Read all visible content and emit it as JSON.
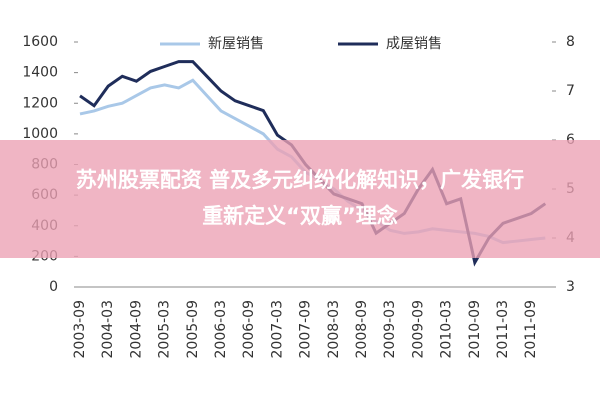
{
  "chart_data": {
    "type": "line",
    "title_lines": [
      "苏州股票配资 普及多元纠纷化解知识，广发银行",
      "重新定义“双赢”理念"
    ],
    "categories": [
      "2003-09",
      null,
      "2004-03",
      null,
      "2004-09",
      null,
      "2005-03",
      null,
      "2005-09",
      null,
      "2006-03",
      null,
      "2006-09",
      null,
      "2007-03",
      null,
      "2007-09",
      null,
      "2008-03",
      null,
      "2008-09",
      null,
      "2009-03",
      null,
      "2009-09",
      null,
      "2010-03",
      null,
      "2010-09",
      null,
      "2011-03",
      null,
      "2011-09",
      null
    ],
    "series": [
      {
        "name": "新屋销售",
        "color": "#a9c8e8",
        "values": [
          1130,
          1150,
          1180,
          1200,
          1250,
          1300,
          1320,
          1300,
          1350,
          1250,
          1150,
          1100,
          1050,
          1000,
          900,
          850,
          750,
          700,
          640,
          560,
          500,
          430,
          370,
          350,
          360,
          380,
          370,
          360,
          350,
          330,
          290,
          300,
          310,
          320
        ]
      },
      {
        "name": "成屋销售",
        "color": "#1f2d5a",
        "axis": "y2",
        "values": [
          6.9,
          6.7,
          7.1,
          7.3,
          7.2,
          7.4,
          7.5,
          7.6,
          7.6,
          7.3,
          7.0,
          6.8,
          6.7,
          6.6,
          6.1,
          5.9,
          5.5,
          5.2,
          4.9,
          4.8,
          4.7,
          4.1,
          4.3,
          4.5,
          5.0,
          5.4,
          4.7,
          4.8,
          3.5,
          4.0,
          4.3,
          4.4,
          4.5,
          4.7
        ]
      }
    ],
    "ylim": [
      0,
      1600
    ],
    "yticks": [
      0,
      200,
      400,
      600,
      800,
      1000,
      1200,
      1400,
      1600
    ],
    "y2lim": [
      3,
      8
    ],
    "y2ticks": [
      3,
      4,
      5,
      6,
      7,
      8
    ]
  }
}
